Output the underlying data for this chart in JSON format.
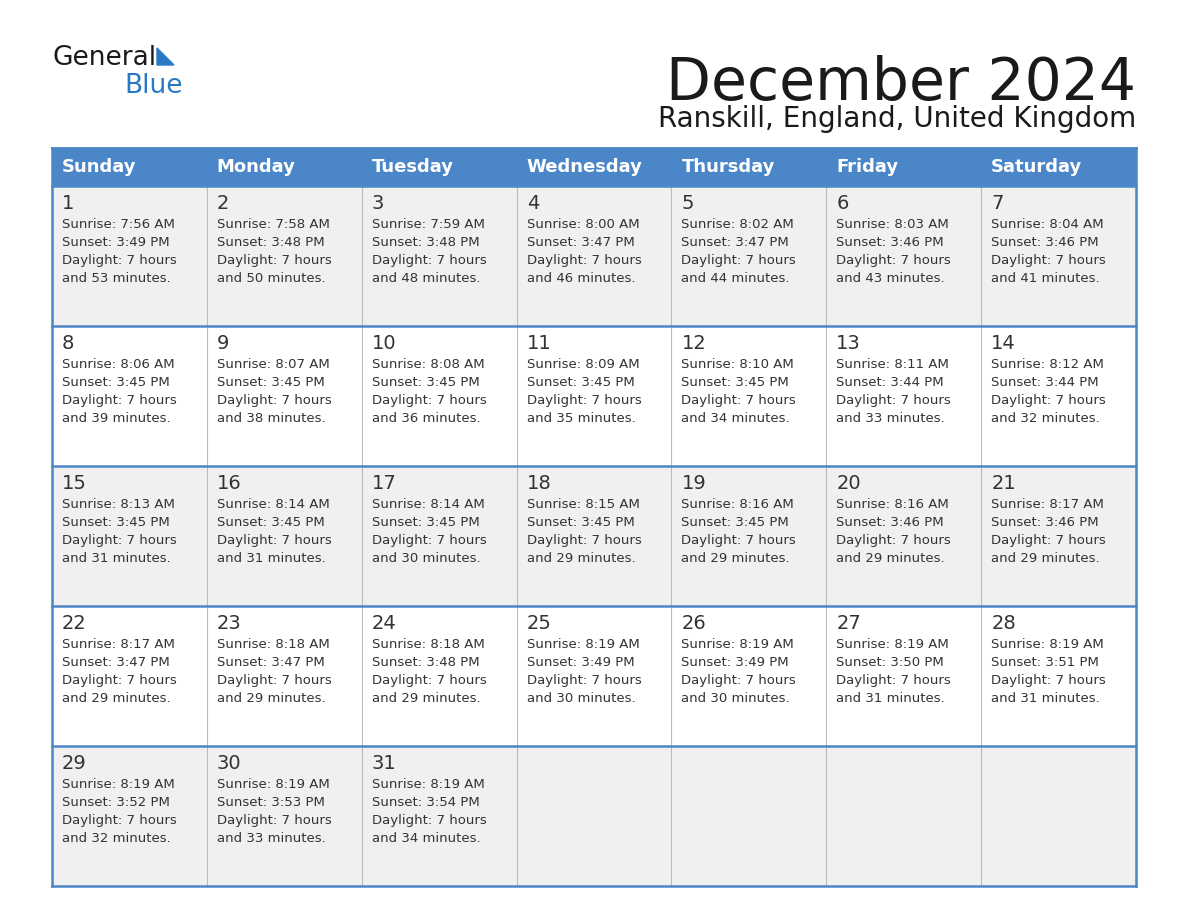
{
  "title": "December 2024",
  "subtitle": "Ranskill, England, United Kingdom",
  "header_bg_color": "#4a86c8",
  "header_text_color": "#ffffff",
  "cell_bg_odd": "#f0f0f0",
  "cell_bg_even": "#ffffff",
  "border_color": "#4a86c8",
  "grid_line_color": "#aaaaaa",
  "day_names": [
    "Sunday",
    "Monday",
    "Tuesday",
    "Wednesday",
    "Thursday",
    "Friday",
    "Saturday"
  ],
  "title_color": "#1a1a1a",
  "subtitle_color": "#1a1a1a",
  "cell_text_color": "#333333",
  "day_num_color": "#333333",
  "logo_black": "#1a1a1a",
  "logo_blue": "#2979c5",
  "calendar_data": [
    [
      {
        "day": 1,
        "sunrise": "7:56 AM",
        "sunset": "3:49 PM",
        "daylight": "7 hours and 53 minutes"
      },
      {
        "day": 2,
        "sunrise": "7:58 AM",
        "sunset": "3:48 PM",
        "daylight": "7 hours and 50 minutes"
      },
      {
        "day": 3,
        "sunrise": "7:59 AM",
        "sunset": "3:48 PM",
        "daylight": "7 hours and 48 minutes"
      },
      {
        "day": 4,
        "sunrise": "8:00 AM",
        "sunset": "3:47 PM",
        "daylight": "7 hours and 46 minutes"
      },
      {
        "day": 5,
        "sunrise": "8:02 AM",
        "sunset": "3:47 PM",
        "daylight": "7 hours and 44 minutes"
      },
      {
        "day": 6,
        "sunrise": "8:03 AM",
        "sunset": "3:46 PM",
        "daylight": "7 hours and 43 minutes"
      },
      {
        "day": 7,
        "sunrise": "8:04 AM",
        "sunset": "3:46 PM",
        "daylight": "7 hours and 41 minutes"
      }
    ],
    [
      {
        "day": 8,
        "sunrise": "8:06 AM",
        "sunset": "3:45 PM",
        "daylight": "7 hours and 39 minutes"
      },
      {
        "day": 9,
        "sunrise": "8:07 AM",
        "sunset": "3:45 PM",
        "daylight": "7 hours and 38 minutes"
      },
      {
        "day": 10,
        "sunrise": "8:08 AM",
        "sunset": "3:45 PM",
        "daylight": "7 hours and 36 minutes"
      },
      {
        "day": 11,
        "sunrise": "8:09 AM",
        "sunset": "3:45 PM",
        "daylight": "7 hours and 35 minutes"
      },
      {
        "day": 12,
        "sunrise": "8:10 AM",
        "sunset": "3:45 PM",
        "daylight": "7 hours and 34 minutes"
      },
      {
        "day": 13,
        "sunrise": "8:11 AM",
        "sunset": "3:44 PM",
        "daylight": "7 hours and 33 minutes"
      },
      {
        "day": 14,
        "sunrise": "8:12 AM",
        "sunset": "3:44 PM",
        "daylight": "7 hours and 32 minutes"
      }
    ],
    [
      {
        "day": 15,
        "sunrise": "8:13 AM",
        "sunset": "3:45 PM",
        "daylight": "7 hours and 31 minutes"
      },
      {
        "day": 16,
        "sunrise": "8:14 AM",
        "sunset": "3:45 PM",
        "daylight": "7 hours and 31 minutes"
      },
      {
        "day": 17,
        "sunrise": "8:14 AM",
        "sunset": "3:45 PM",
        "daylight": "7 hours and 30 minutes"
      },
      {
        "day": 18,
        "sunrise": "8:15 AM",
        "sunset": "3:45 PM",
        "daylight": "7 hours and 29 minutes"
      },
      {
        "day": 19,
        "sunrise": "8:16 AM",
        "sunset": "3:45 PM",
        "daylight": "7 hours and 29 minutes"
      },
      {
        "day": 20,
        "sunrise": "8:16 AM",
        "sunset": "3:46 PM",
        "daylight": "7 hours and 29 minutes"
      },
      {
        "day": 21,
        "sunrise": "8:17 AM",
        "sunset": "3:46 PM",
        "daylight": "7 hours and 29 minutes"
      }
    ],
    [
      {
        "day": 22,
        "sunrise": "8:17 AM",
        "sunset": "3:47 PM",
        "daylight": "7 hours and 29 minutes"
      },
      {
        "day": 23,
        "sunrise": "8:18 AM",
        "sunset": "3:47 PM",
        "daylight": "7 hours and 29 minutes"
      },
      {
        "day": 24,
        "sunrise": "8:18 AM",
        "sunset": "3:48 PM",
        "daylight": "7 hours and 29 minutes"
      },
      {
        "day": 25,
        "sunrise": "8:19 AM",
        "sunset": "3:49 PM",
        "daylight": "7 hours and 30 minutes"
      },
      {
        "day": 26,
        "sunrise": "8:19 AM",
        "sunset": "3:49 PM",
        "daylight": "7 hours and 30 minutes"
      },
      {
        "day": 27,
        "sunrise": "8:19 AM",
        "sunset": "3:50 PM",
        "daylight": "7 hours and 31 minutes"
      },
      {
        "day": 28,
        "sunrise": "8:19 AM",
        "sunset": "3:51 PM",
        "daylight": "7 hours and 31 minutes"
      }
    ],
    [
      {
        "day": 29,
        "sunrise": "8:19 AM",
        "sunset": "3:52 PM",
        "daylight": "7 hours and 32 minutes"
      },
      {
        "day": 30,
        "sunrise": "8:19 AM",
        "sunset": "3:53 PM",
        "daylight": "7 hours and 33 minutes"
      },
      {
        "day": 31,
        "sunrise": "8:19 AM",
        "sunset": "3:54 PM",
        "daylight": "7 hours and 34 minutes"
      },
      null,
      null,
      null,
      null
    ]
  ]
}
